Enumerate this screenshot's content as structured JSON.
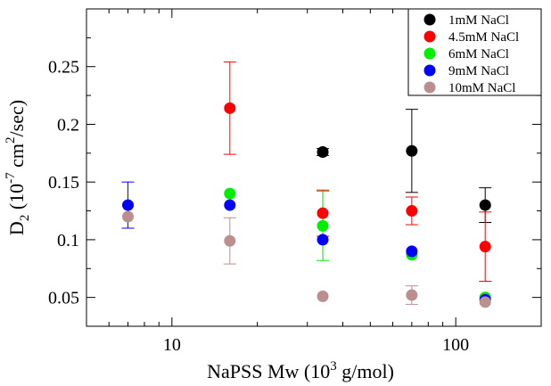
{
  "chart_data": {
    "type": "scatter",
    "x_scale": "log",
    "y_scale": "linear",
    "xlim": [
      5,
      200
    ],
    "ylim": [
      0.025,
      0.3
    ],
    "grid": false,
    "legend_position": "top-right",
    "x_ticks": [
      {
        "value": 10,
        "label": "10"
      },
      {
        "value": 100,
        "label": "100"
      }
    ],
    "x_minor_ticks": [
      6,
      7,
      8,
      9,
      20,
      30,
      40,
      50,
      60,
      70,
      80,
      90,
      200
    ],
    "y_ticks": [
      {
        "value": 0.05,
        "label": "0.05"
      },
      {
        "value": 0.1,
        "label": "0.1"
      },
      {
        "value": 0.15,
        "label": "0.15"
      },
      {
        "value": 0.2,
        "label": "0.2"
      },
      {
        "value": 0.25,
        "label": "0.25"
      }
    ],
    "y_minor_ticks": [
      0.075,
      0.125,
      0.175,
      0.225,
      0.275
    ],
    "xlabel": {
      "prefix": "NaPSS Mw (10",
      "sup": "3",
      "suffix": " g/mol)"
    },
    "ylabel": {
      "base": "D",
      "sub": "2",
      "mid1": " (10",
      "sup1": "-7",
      "mid2": " cm",
      "sup2": "2",
      "end": "/sec)"
    },
    "series": [
      {
        "name": "1mM NaCl",
        "color": "#000000",
        "points": [
          {
            "x": 34,
            "y": 0.176,
            "err": 0.003
          },
          {
            "x": 70,
            "y": 0.177,
            "err": 0.036
          },
          {
            "x": 127,
            "y": 0.13,
            "err": 0.015
          }
        ]
      },
      {
        "name": "4.5mM NaCl",
        "color": "#ff0000",
        "points": [
          {
            "x": 16,
            "y": 0.214,
            "err": 0.04
          },
          {
            "x": 34,
            "y": 0.123,
            "err": 0.02
          },
          {
            "x": 70,
            "y": 0.125,
            "err": 0.012
          },
          {
            "x": 127,
            "y": 0.094,
            "err": 0.03
          }
        ]
      },
      {
        "name": "6mM NaCl",
        "color": "#00ee00",
        "points": [
          {
            "x": 16,
            "y": 0.14,
            "err": null
          },
          {
            "x": 34,
            "y": 0.112,
            "err": 0.03
          },
          {
            "x": 70,
            "y": 0.087,
            "err": null
          },
          {
            "x": 127,
            "y": 0.05,
            "err": null
          }
        ]
      },
      {
        "name": "9mM NaCl",
        "color": "#0000ff",
        "points": [
          {
            "x": 7,
            "y": 0.13,
            "err": 0.02
          },
          {
            "x": 16,
            "y": 0.13,
            "err": null
          },
          {
            "x": 34,
            "y": 0.1,
            "err": null
          },
          {
            "x": 70,
            "y": 0.09,
            "err": null
          },
          {
            "x": 127,
            "y": 0.048,
            "err": null
          }
        ]
      },
      {
        "name": "10mM NaCl",
        "color": "#bc8f8f",
        "points": [
          {
            "x": 7,
            "y": 0.12,
            "err": null
          },
          {
            "x": 16,
            "y": 0.099,
            "err": 0.02
          },
          {
            "x": 34,
            "y": 0.051,
            "err": null
          },
          {
            "x": 70,
            "y": 0.052,
            "err": 0.008
          },
          {
            "x": 127,
            "y": 0.046,
            "err": null
          }
        ]
      }
    ]
  }
}
